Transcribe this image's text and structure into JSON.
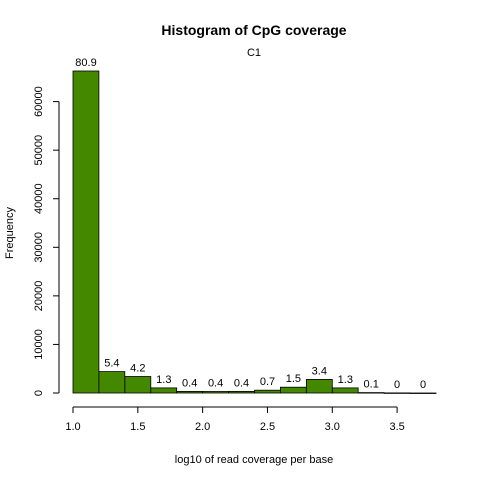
{
  "chart_data": {
    "type": "bar",
    "title": "Histogram of CpG coverage",
    "subtitle": "C1",
    "xlabel": "log10 of read coverage per base",
    "ylabel": "Frequency",
    "bar_color": "#448800",
    "bins": [
      {
        "start": 1.0,
        "end": 1.2,
        "value": 66300,
        "label": "80.9"
      },
      {
        "start": 1.2,
        "end": 1.4,
        "value": 4400,
        "label": "5.4"
      },
      {
        "start": 1.4,
        "end": 1.6,
        "value": 3400,
        "label": "4.2"
      },
      {
        "start": 1.6,
        "end": 1.8,
        "value": 1050,
        "label": "1.3"
      },
      {
        "start": 1.8,
        "end": 2.0,
        "value": 330,
        "label": "0.4"
      },
      {
        "start": 2.0,
        "end": 2.2,
        "value": 310,
        "label": "0.4"
      },
      {
        "start": 2.2,
        "end": 2.4,
        "value": 320,
        "label": "0.4"
      },
      {
        "start": 2.4,
        "end": 2.6,
        "value": 570,
        "label": "0.7"
      },
      {
        "start": 2.6,
        "end": 2.8,
        "value": 1200,
        "label": "1.5"
      },
      {
        "start": 2.8,
        "end": 3.0,
        "value": 2800,
        "label": "3.4"
      },
      {
        "start": 3.0,
        "end": 3.2,
        "value": 1050,
        "label": "1.3"
      },
      {
        "start": 3.2,
        "end": 3.4,
        "value": 90,
        "label": "0.1"
      },
      {
        "start": 3.4,
        "end": 3.6,
        "value": 20,
        "label": "0"
      },
      {
        "start": 3.6,
        "end": 3.8,
        "value": 10,
        "label": "0"
      }
    ],
    "x_ticks": [
      "1.0",
      "1.5",
      "2.0",
      "2.5",
      "3.0",
      "3.5"
    ],
    "y_ticks": [
      "0",
      "10000",
      "20000",
      "30000",
      "40000",
      "50000",
      "60000"
    ],
    "xlim": [
      1.0,
      3.8
    ],
    "ylim": [
      0,
      66300
    ],
    "grid": false
  }
}
